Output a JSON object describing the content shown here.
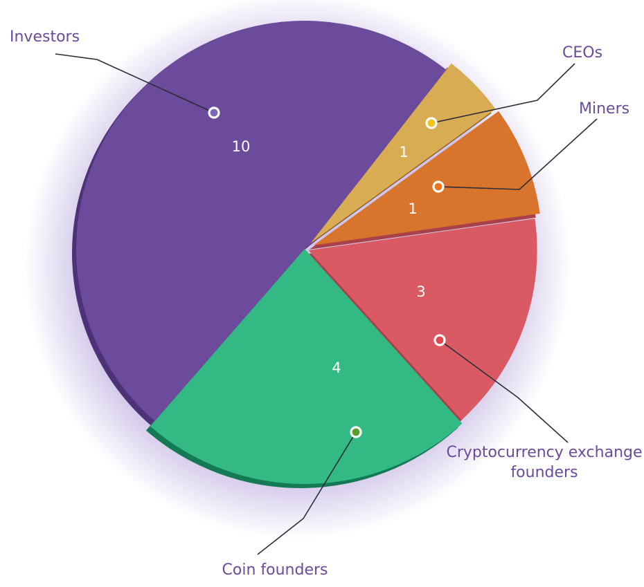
{
  "chart_data": {
    "type": "pie",
    "title": "",
    "label_color": "#6b4a9b",
    "leader_color": "#2b2b3a",
    "slices": [
      {
        "label": "Investors",
        "value": 10,
        "value_label": "10",
        "color": "#6c4a9c",
        "side_color": "#4e3278",
        "dot_color": "#7b67b8"
      },
      {
        "label": "CEOs",
        "value": 1,
        "value_label": "1",
        "color": "#d8ac52",
        "side_color": "#8e5422",
        "dot_color": "#f2c31c"
      },
      {
        "label": "Miners",
        "value": 1,
        "value_label": "1",
        "color": "#d8742b",
        "side_color": "#a8414a",
        "dot_color": "#e8751f"
      },
      {
        "label": "Cryptocurrency exchange founders",
        "label_lines": [
          "Cryptocurrency exchange",
          "founders"
        ],
        "value": 3,
        "value_label": "3",
        "color": "#d95a62",
        "side_color": "#a8414a",
        "dot_color": "#e0464b"
      },
      {
        "label": "Coin founders",
        "value": 4,
        "value_label": "4",
        "color": "#33b984",
        "side_color": "#137a55",
        "dot_color": "#5a9e2f"
      }
    ]
  }
}
